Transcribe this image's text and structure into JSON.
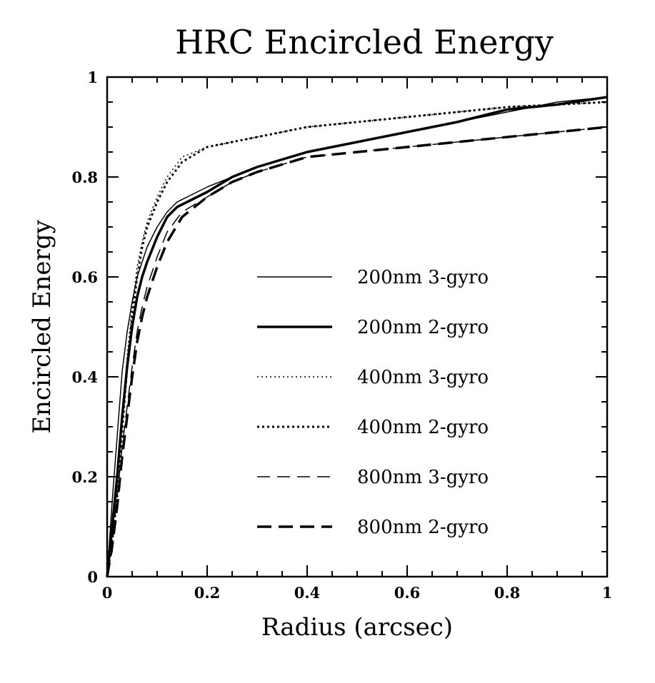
{
  "chart_data": {
    "type": "line",
    "title": "HRC Encircled Energy",
    "xlabel": "Radius (arcsec)",
    "ylabel": "Encircled Energy",
    "xlim": [
      0,
      1
    ],
    "ylim": [
      0,
      1
    ],
    "x_ticks": [
      "0",
      "0.2",
      "0.4",
      "0.6",
      "0.8",
      "1"
    ],
    "y_ticks": [
      "0",
      "0.2",
      "0.4",
      "0.6",
      "0.8",
      "1"
    ],
    "grid": false,
    "legend_position": "center-right",
    "series": [
      {
        "name": "200nm 3-gyro",
        "style": "thin-solid",
        "x": [
          0,
          0.01,
          0.02,
          0.03,
          0.04,
          0.05,
          0.06,
          0.07,
          0.08,
          0.1,
          0.12,
          0.14,
          0.16,
          0.2,
          0.25,
          0.3,
          0.4,
          0.5,
          0.6,
          0.7,
          0.8,
          0.9,
          1.0
        ],
        "y": [
          0,
          0.15,
          0.28,
          0.41,
          0.49,
          0.55,
          0.6,
          0.63,
          0.66,
          0.7,
          0.73,
          0.75,
          0.76,
          0.78,
          0.8,
          0.82,
          0.85,
          0.87,
          0.89,
          0.91,
          0.93,
          0.95,
          0.96
        ]
      },
      {
        "name": "200nm 2-gyro",
        "style": "thick-solid",
        "x": [
          0,
          0.01,
          0.02,
          0.03,
          0.04,
          0.05,
          0.06,
          0.07,
          0.08,
          0.1,
          0.12,
          0.14,
          0.16,
          0.2,
          0.25,
          0.3,
          0.4,
          0.5,
          0.6,
          0.7,
          0.8,
          0.9,
          1.0
        ],
        "y": [
          0,
          0.1,
          0.2,
          0.32,
          0.42,
          0.5,
          0.56,
          0.6,
          0.63,
          0.68,
          0.72,
          0.74,
          0.75,
          0.77,
          0.8,
          0.82,
          0.85,
          0.87,
          0.89,
          0.91,
          0.935,
          0.945,
          0.96
        ]
      },
      {
        "name": "400nm 3-gyro",
        "style": "thin-dotted",
        "x": [
          0,
          0.01,
          0.02,
          0.03,
          0.04,
          0.05,
          0.06,
          0.07,
          0.08,
          0.1,
          0.12,
          0.15,
          0.2,
          0.25,
          0.3,
          0.4,
          0.5,
          0.6,
          0.7,
          0.8,
          0.9,
          1.0
        ],
        "y": [
          0,
          0.08,
          0.18,
          0.31,
          0.44,
          0.54,
          0.62,
          0.67,
          0.71,
          0.76,
          0.8,
          0.84,
          0.86,
          0.87,
          0.88,
          0.9,
          0.91,
          0.92,
          0.93,
          0.94,
          0.945,
          0.95
        ]
      },
      {
        "name": "400nm 2-gyro",
        "style": "thick-dotted",
        "x": [
          0,
          0.01,
          0.02,
          0.03,
          0.04,
          0.05,
          0.06,
          0.07,
          0.08,
          0.1,
          0.12,
          0.15,
          0.2,
          0.25,
          0.3,
          0.4,
          0.5,
          0.6,
          0.7,
          0.8,
          0.9,
          1.0
        ],
        "y": [
          0,
          0.07,
          0.16,
          0.29,
          0.42,
          0.52,
          0.6,
          0.66,
          0.7,
          0.75,
          0.79,
          0.83,
          0.86,
          0.87,
          0.88,
          0.9,
          0.91,
          0.92,
          0.93,
          0.94,
          0.945,
          0.95
        ]
      },
      {
        "name": "800nm 3-gyro",
        "style": "thin-dashed",
        "x": [
          0,
          0.01,
          0.02,
          0.03,
          0.04,
          0.05,
          0.06,
          0.07,
          0.08,
          0.1,
          0.12,
          0.15,
          0.2,
          0.25,
          0.3,
          0.4,
          0.5,
          0.6,
          0.7,
          0.8,
          0.9,
          1.0
        ],
        "y": [
          0,
          0.07,
          0.16,
          0.26,
          0.34,
          0.42,
          0.49,
          0.54,
          0.58,
          0.64,
          0.69,
          0.73,
          0.76,
          0.79,
          0.81,
          0.84,
          0.85,
          0.86,
          0.87,
          0.88,
          0.89,
          0.9
        ]
      },
      {
        "name": "800nm 2-gyro",
        "style": "thick-dashed",
        "x": [
          0,
          0.01,
          0.02,
          0.03,
          0.04,
          0.05,
          0.06,
          0.07,
          0.08,
          0.1,
          0.12,
          0.15,
          0.2,
          0.25,
          0.3,
          0.4,
          0.5,
          0.6,
          0.7,
          0.8,
          0.9,
          1.0
        ],
        "y": [
          0,
          0.06,
          0.14,
          0.24,
          0.32,
          0.4,
          0.47,
          0.52,
          0.56,
          0.62,
          0.67,
          0.72,
          0.76,
          0.79,
          0.81,
          0.84,
          0.85,
          0.86,
          0.87,
          0.88,
          0.89,
          0.9
        ]
      }
    ]
  }
}
